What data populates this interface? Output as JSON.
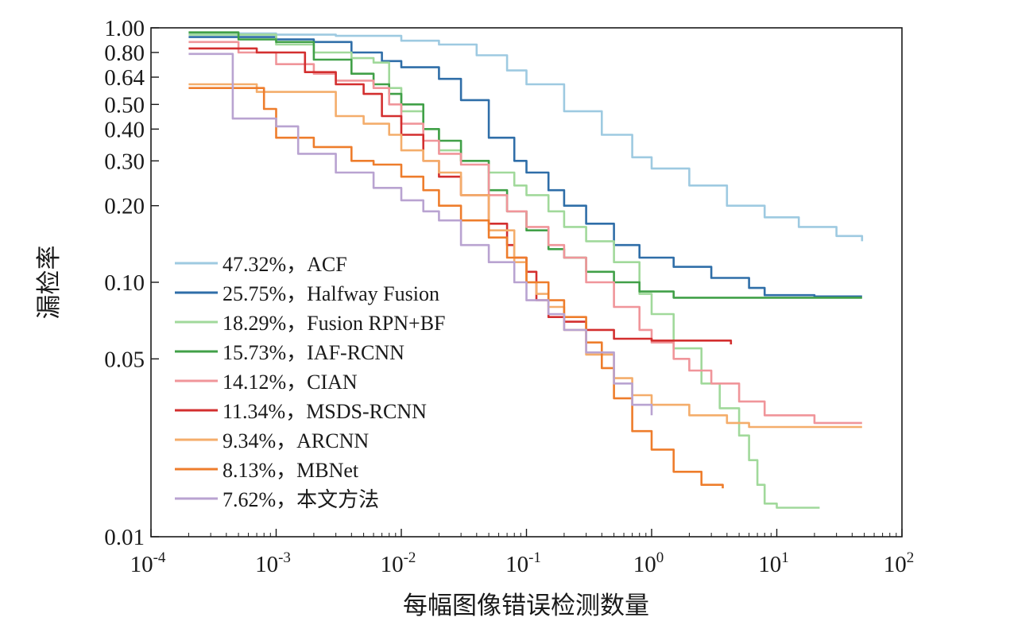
{
  "chart_data": {
    "type": "line",
    "xlabel": "每幅图像错误检测数量",
    "ylabel": "漏检率",
    "x_scale": "log",
    "y_scale": "log",
    "xlim": [
      0.0001,
      100
    ],
    "ylim": [
      0.01,
      1.0
    ],
    "x_ticks": [
      0.0001,
      0.001,
      0.01,
      0.1,
      1,
      10,
      100
    ],
    "x_tick_labels": [
      {
        "base": "10",
        "exp": "-4"
      },
      {
        "base": "10",
        "exp": "-3"
      },
      {
        "base": "10",
        "exp": "-2"
      },
      {
        "base": "10",
        "exp": "-1"
      },
      {
        "base": "10",
        "exp": "0"
      },
      {
        "base": "10",
        "exp": "1"
      },
      {
        "base": "10",
        "exp": "2"
      }
    ],
    "y_ticks": [
      1.0,
      0.8,
      0.64,
      0.5,
      0.4,
      0.3,
      0.2,
      0.1,
      0.05,
      0.01
    ],
    "y_tick_labels": [
      "1.00",
      "0.80",
      "0.64",
      "0.50",
      "0.40",
      "0.30",
      "0.20",
      "0.10",
      "0.05",
      "0.01"
    ],
    "grid": false,
    "legend_position": "bottom-left",
    "series": [
      {
        "name": "47.32%，ACF",
        "color": "#9ecae1",
        "points": [
          [
            0.0002,
            0.95
          ],
          [
            0.001,
            0.94
          ],
          [
            0.003,
            0.93
          ],
          [
            0.01,
            0.89
          ],
          [
            0.02,
            0.86
          ],
          [
            0.04,
            0.78
          ],
          [
            0.07,
            0.68
          ],
          [
            0.1,
            0.6
          ],
          [
            0.2,
            0.47
          ],
          [
            0.4,
            0.38
          ],
          [
            0.7,
            0.31
          ],
          [
            1,
            0.28
          ],
          [
            2,
            0.24
          ],
          [
            4,
            0.2
          ],
          [
            8,
            0.18
          ],
          [
            15,
            0.165
          ],
          [
            30,
            0.152
          ],
          [
            48,
            0.145
          ]
        ]
      },
      {
        "name": "25.75%，Halfway Fusion",
        "color": "#2f6ea8",
        "points": [
          [
            0.0002,
            0.92
          ],
          [
            0.0006,
            0.92
          ],
          [
            0.001,
            0.9
          ],
          [
            0.002,
            0.88
          ],
          [
            0.004,
            0.8
          ],
          [
            0.007,
            0.74
          ],
          [
            0.01,
            0.7
          ],
          [
            0.02,
            0.63
          ],
          [
            0.03,
            0.52
          ],
          [
            0.05,
            0.37
          ],
          [
            0.08,
            0.3
          ],
          [
            0.1,
            0.27
          ],
          [
            0.15,
            0.23
          ],
          [
            0.2,
            0.2
          ],
          [
            0.3,
            0.17
          ],
          [
            0.5,
            0.14
          ],
          [
            0.8,
            0.125
          ],
          [
            1.5,
            0.115
          ],
          [
            3,
            0.104
          ],
          [
            6,
            0.095
          ],
          [
            8,
            0.089
          ],
          [
            20,
            0.088
          ],
          [
            48,
            0.088
          ]
        ]
      },
      {
        "name": "18.29%，Fusion RPN+BF",
        "color": "#a1d99b",
        "points": [
          [
            0.0002,
            0.94
          ],
          [
            0.001,
            0.86
          ],
          [
            0.002,
            0.8
          ],
          [
            0.004,
            0.76
          ],
          [
            0.006,
            0.73
          ],
          [
            0.008,
            0.58
          ],
          [
            0.01,
            0.47
          ],
          [
            0.015,
            0.4
          ],
          [
            0.02,
            0.33
          ],
          [
            0.03,
            0.3
          ],
          [
            0.05,
            0.27
          ],
          [
            0.08,
            0.24
          ],
          [
            0.1,
            0.22
          ],
          [
            0.15,
            0.19
          ],
          [
            0.2,
            0.165
          ],
          [
            0.3,
            0.145
          ],
          [
            0.5,
            0.12
          ],
          [
            0.8,
            0.09
          ],
          [
            1,
            0.075
          ],
          [
            1.5,
            0.055
          ],
          [
            2.5,
            0.04
          ],
          [
            3.5,
            0.032
          ],
          [
            5,
            0.025
          ],
          [
            6,
            0.02
          ],
          [
            7,
            0.016
          ],
          [
            8,
            0.0135
          ],
          [
            10,
            0.013
          ],
          [
            22,
            0.013
          ]
        ]
      },
      {
        "name": "15.73%，IAF-RCNN",
        "color": "#41a048",
        "points": [
          [
            0.0002,
            0.96
          ],
          [
            0.0004,
            0.96
          ],
          [
            0.0005,
            0.9
          ],
          [
            0.001,
            0.88
          ],
          [
            0.002,
            0.75
          ],
          [
            0.004,
            0.66
          ],
          [
            0.006,
            0.6
          ],
          [
            0.008,
            0.55
          ],
          [
            0.01,
            0.5
          ],
          [
            0.015,
            0.4
          ],
          [
            0.02,
            0.36
          ],
          [
            0.03,
            0.3
          ],
          [
            0.05,
            0.23
          ],
          [
            0.07,
            0.19
          ],
          [
            0.1,
            0.16
          ],
          [
            0.15,
            0.135
          ],
          [
            0.2,
            0.125
          ],
          [
            0.3,
            0.11
          ],
          [
            0.5,
            0.1
          ],
          [
            0.8,
            0.092
          ],
          [
            1.5,
            0.087
          ],
          [
            5,
            0.087
          ],
          [
            48,
            0.087
          ]
        ]
      },
      {
        "name": "14.12%，CIAN",
        "color": "#f0959a",
        "points": [
          [
            0.0002,
            0.88
          ],
          [
            0.0005,
            0.8
          ],
          [
            0.001,
            0.72
          ],
          [
            0.002,
            0.66
          ],
          [
            0.003,
            0.62
          ],
          [
            0.006,
            0.58
          ],
          [
            0.008,
            0.5
          ],
          [
            0.01,
            0.42
          ],
          [
            0.015,
            0.36
          ],
          [
            0.02,
            0.32
          ],
          [
            0.03,
            0.29
          ],
          [
            0.05,
            0.22
          ],
          [
            0.07,
            0.19
          ],
          [
            0.1,
            0.165
          ],
          [
            0.15,
            0.14
          ],
          [
            0.2,
            0.125
          ],
          [
            0.3,
            0.1
          ],
          [
            0.5,
            0.08
          ],
          [
            0.8,
            0.065
          ],
          [
            1,
            0.058
          ],
          [
            1.5,
            0.05
          ],
          [
            2,
            0.045
          ],
          [
            3,
            0.04
          ],
          [
            5,
            0.034
          ],
          [
            8,
            0.03
          ],
          [
            20,
            0.028
          ],
          [
            48,
            0.028
          ]
        ]
      },
      {
        "name": "11.34%，MSDS-RCNN",
        "color": "#d32f2f",
        "points": [
          [
            0.0002,
            0.83
          ],
          [
            0.0005,
            0.83
          ],
          [
            0.0007,
            0.8
          ],
          [
            0.0015,
            0.8
          ],
          [
            0.0017,
            0.67
          ],
          [
            0.003,
            0.6
          ],
          [
            0.005,
            0.55
          ],
          [
            0.007,
            0.45
          ],
          [
            0.01,
            0.38
          ],
          [
            0.015,
            0.3
          ],
          [
            0.02,
            0.26
          ],
          [
            0.03,
            0.22
          ],
          [
            0.05,
            0.17
          ],
          [
            0.07,
            0.14
          ],
          [
            0.08,
            0.125
          ],
          [
            0.1,
            0.11
          ],
          [
            0.12,
            0.085
          ],
          [
            0.15,
            0.073
          ],
          [
            0.2,
            0.07
          ],
          [
            0.3,
            0.065
          ],
          [
            0.5,
            0.06
          ],
          [
            1,
            0.059
          ],
          [
            3,
            0.059
          ],
          [
            4.2,
            0.059
          ],
          [
            4.3,
            0.057
          ]
        ]
      },
      {
        "name": "9.34%，ARCNN",
        "color": "#f4ad6b",
        "points": [
          [
            0.0002,
            0.6
          ],
          [
            0.0005,
            0.6
          ],
          [
            0.0007,
            0.56
          ],
          [
            0.002,
            0.56
          ],
          [
            0.003,
            0.45
          ],
          [
            0.005,
            0.42
          ],
          [
            0.008,
            0.38
          ],
          [
            0.01,
            0.33
          ],
          [
            0.015,
            0.3
          ],
          [
            0.02,
            0.27
          ],
          [
            0.03,
            0.22
          ],
          [
            0.05,
            0.16
          ],
          [
            0.08,
            0.12
          ],
          [
            0.1,
            0.1
          ],
          [
            0.12,
            0.09
          ],
          [
            0.15,
            0.08
          ],
          [
            0.2,
            0.065
          ],
          [
            0.3,
            0.052
          ],
          [
            0.5,
            0.042
          ],
          [
            0.7,
            0.036
          ],
          [
            1,
            0.033
          ],
          [
            2,
            0.03
          ],
          [
            4,
            0.028
          ],
          [
            6,
            0.027
          ],
          [
            48,
            0.027
          ]
        ]
      },
      {
        "name": "8.13%，MBNet",
        "color": "#ee7d2c",
        "points": [
          [
            0.0002,
            0.58
          ],
          [
            0.0005,
            0.58
          ],
          [
            0.0008,
            0.48
          ],
          [
            0.001,
            0.37
          ],
          [
            0.002,
            0.34
          ],
          [
            0.004,
            0.3
          ],
          [
            0.006,
            0.29
          ],
          [
            0.01,
            0.26
          ],
          [
            0.015,
            0.23
          ],
          [
            0.02,
            0.2
          ],
          [
            0.03,
            0.175
          ],
          [
            0.05,
            0.15
          ],
          [
            0.07,
            0.125
          ],
          [
            0.1,
            0.1
          ],
          [
            0.15,
            0.085
          ],
          [
            0.2,
            0.073
          ],
          [
            0.3,
            0.058
          ],
          [
            0.4,
            0.046
          ],
          [
            0.5,
            0.035
          ],
          [
            0.7,
            0.026
          ],
          [
            1,
            0.022
          ],
          [
            1.5,
            0.018
          ],
          [
            2.5,
            0.016
          ],
          [
            3.7,
            0.0155
          ]
        ]
      },
      {
        "name": "7.62%，本文方法",
        "color": "#b9a3d1",
        "points": [
          [
            0.0002,
            0.79
          ],
          [
            0.0004,
            0.79
          ],
          [
            0.00045,
            0.44
          ],
          [
            0.001,
            0.41
          ],
          [
            0.0015,
            0.32
          ],
          [
            0.003,
            0.27
          ],
          [
            0.006,
            0.235
          ],
          [
            0.01,
            0.21
          ],
          [
            0.015,
            0.19
          ],
          [
            0.02,
            0.175
          ],
          [
            0.03,
            0.14
          ],
          [
            0.05,
            0.12
          ],
          [
            0.08,
            0.1
          ],
          [
            0.1,
            0.085
          ],
          [
            0.15,
            0.075
          ],
          [
            0.2,
            0.065
          ],
          [
            0.3,
            0.053
          ],
          [
            0.5,
            0.04
          ],
          [
            0.7,
            0.033
          ],
          [
            1,
            0.03
          ]
        ]
      }
    ]
  }
}
